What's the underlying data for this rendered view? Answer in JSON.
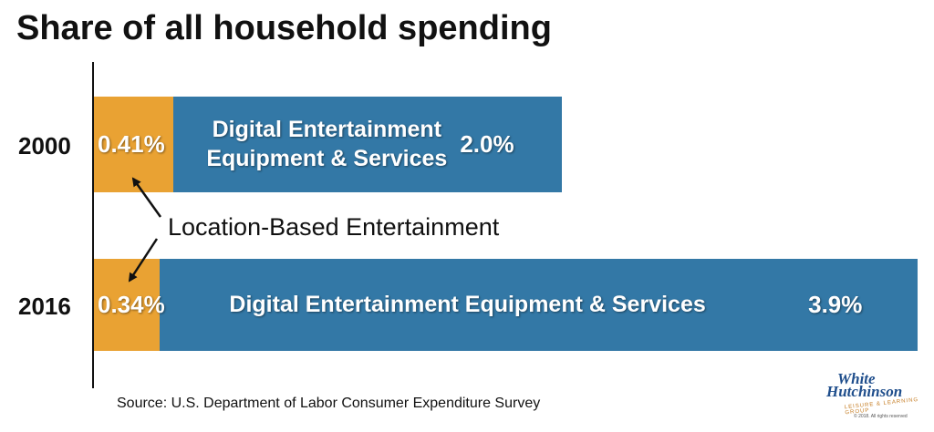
{
  "title": "Share of all household spending",
  "annotation": "Location-Based Entertainment",
  "source": "Source: U.S. Department of Labor Consumer Expenditure Survey",
  "logo": {
    "line1": "White",
    "line2": "Hutchinson",
    "tagline": "LEISURE & LEARNING GROUP",
    "copyright": "© 2018. All rights reserved"
  },
  "colors": {
    "location_based": "#e9a233",
    "digital": "#3378a6"
  },
  "chart_data": {
    "type": "bar",
    "orientation": "horizontal",
    "stacked": true,
    "title": "Share of all household spending",
    "categories": [
      "2000",
      "2016"
    ],
    "series": [
      {
        "name": "Location-Based Entertainment",
        "values": [
          0.41,
          0.34
        ],
        "labels": [
          "0.41%",
          "0.34%"
        ]
      },
      {
        "name": "Digital Entertainment Equipment & Services",
        "values": [
          2.0,
          3.9
        ],
        "labels": [
          "2.0%",
          "3.9%"
        ],
        "segment_text": [
          "Digital Entertainment Equipment & Services",
          "Digital Entertainment Equipment & Services"
        ]
      }
    ],
    "grid": false,
    "legend": "none"
  }
}
